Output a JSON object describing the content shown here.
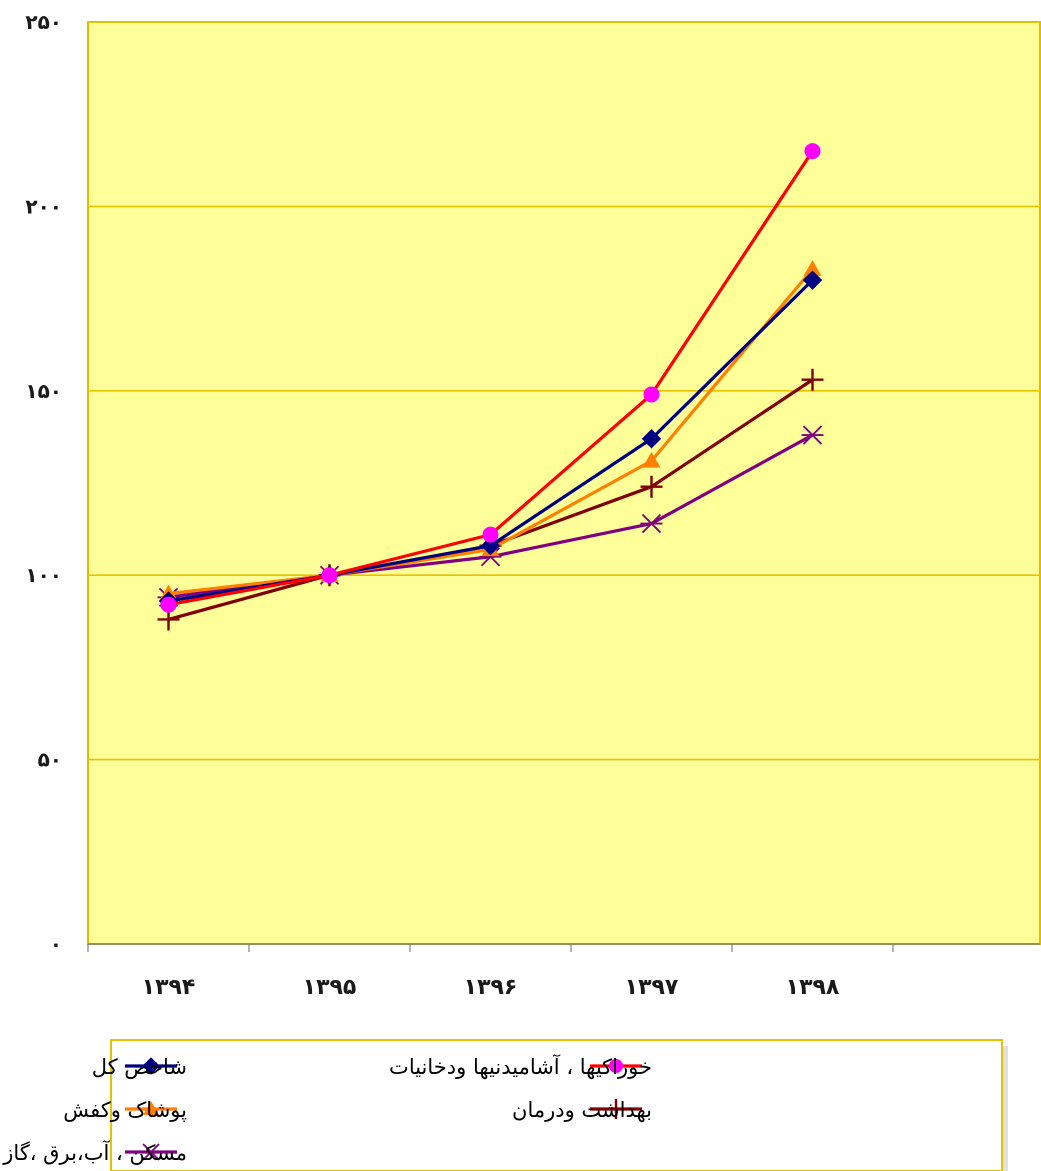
{
  "chart_data": {
    "type": "line",
    "categories": [
      "۱۳۹۴",
      "۱۳۹۵",
      "۱۳۹۶",
      "۱۳۹۷",
      "۱۳۹۸"
    ],
    "y_ticks": [
      "۰",
      "۵۰",
      "۱۰۰",
      "۱۵۰",
      "۲۰۰",
      "۲۵۰"
    ],
    "ylim": [
      0,
      250
    ],
    "grid": true,
    "legend_position": "bottom",
    "series": [
      {
        "name": "شاخص کل",
        "color": "#000080",
        "marker": "diamond",
        "values": [
          93,
          100,
          108,
          137,
          180
        ]
      },
      {
        "name": "خوراکیها ، آشامیدنیها ودخانیات",
        "color": "#ff0000",
        "marker_color": "#ff00ff",
        "marker": "circle",
        "values": [
          92,
          100,
          111,
          149,
          215
        ]
      },
      {
        "name": "پوشاک وکفش",
        "color": "#ff8000",
        "marker": "triangle",
        "values": [
          95,
          100,
          107,
          131,
          183
        ]
      },
      {
        "name": "بهداشت ودرمان",
        "color": "#800000",
        "marker": "plus",
        "values": [
          88,
          100,
          108,
          124,
          153
        ]
      },
      {
        "name": "مسکن ، آب،برق ،گاز وسایر سوختها",
        "color": "#800080",
        "marker": "star",
        "values": [
          94,
          100,
          105,
          114,
          138
        ]
      }
    ],
    "plot_background": "#ffff99",
    "frame_color": "#e8b800"
  }
}
